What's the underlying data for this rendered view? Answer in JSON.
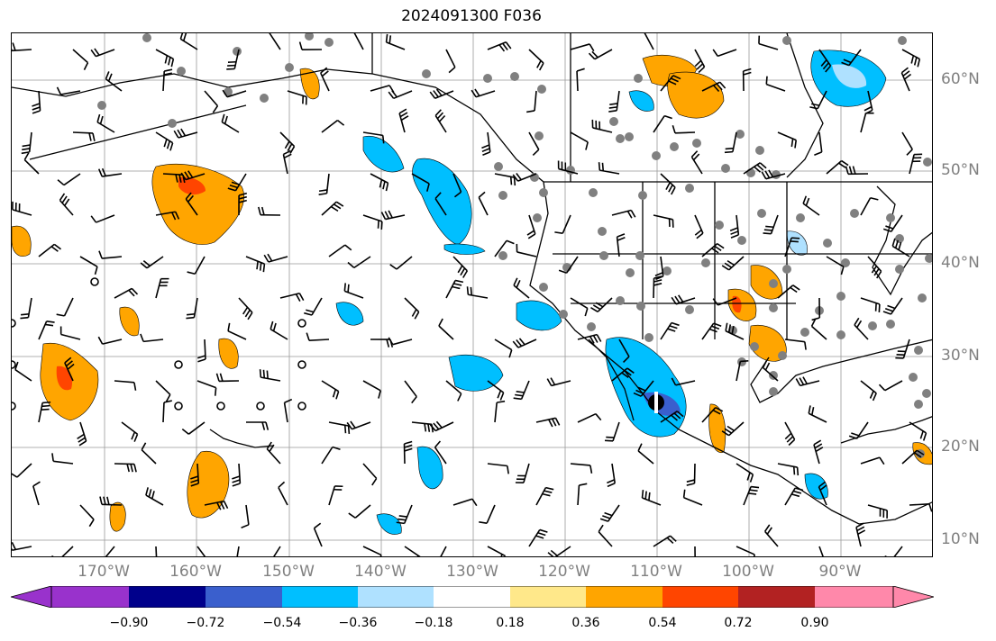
{
  "title": "2024091300 F036",
  "map": {
    "lon_labels": [
      "170°W",
      "160°W",
      "150°W",
      "140°W",
      "130°W",
      "120°W",
      "110°W",
      "100°W",
      "90°W"
    ],
    "lat_labels": [
      "60°N",
      "50°N",
      "40°N",
      "30°N",
      "20°N",
      "10°N"
    ],
    "gridline_color": "#999999",
    "coastline_color": "#000000",
    "station_dot_color": "#808080",
    "contour_line_color": "#000000"
  },
  "colorbar": {
    "tick_labels": [
      "−0.90",
      "−0.72",
      "−0.54",
      "−0.36",
      "−0.18",
      "0.18",
      "0.36",
      "0.54",
      "0.72",
      "0.90"
    ],
    "colors": [
      "#9932cc",
      "#00008b",
      "#3a5fcd",
      "#00bfff",
      "#afe1ff",
      "#ffffff",
      "#ffe88a",
      "#ffa500",
      "#ff4500",
      "#b22222",
      "#ff88aa"
    ]
  }
}
